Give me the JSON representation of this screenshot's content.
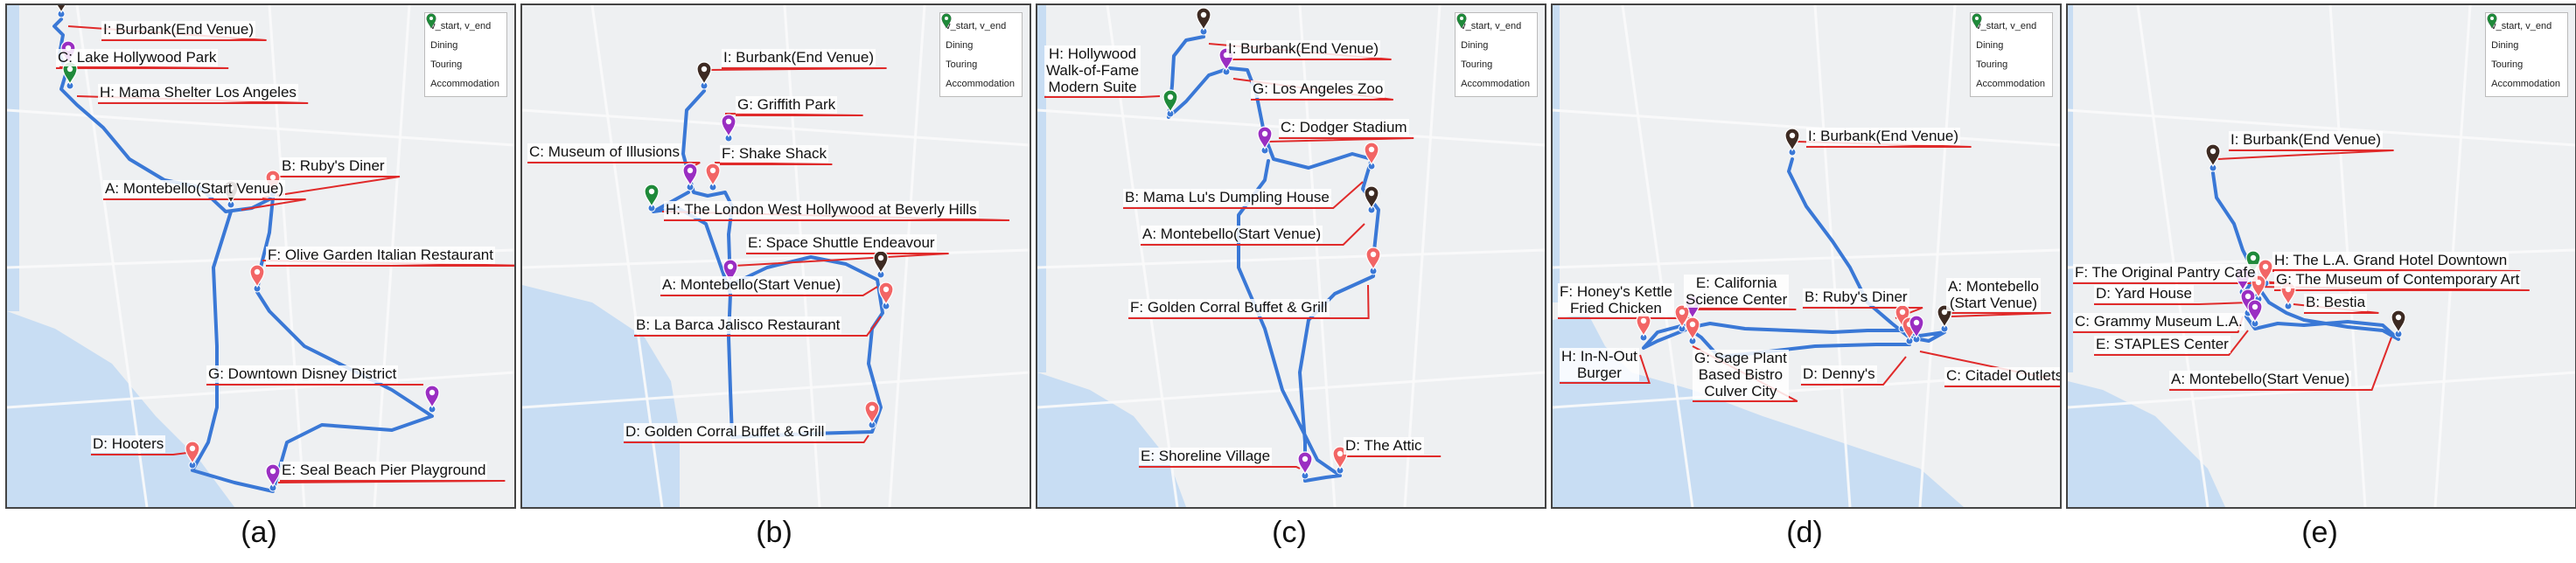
{
  "figure": {
    "colors": {
      "route": "#3a78d6",
      "leader": "#e02a2a",
      "land": "#eef0f2",
      "water": "#c8ddf3",
      "road": "#fbfbfb",
      "start_end": "#3d2a22",
      "dining": "#f26565",
      "touring": "#9a2ec2",
      "accommodation": "#1f8a3a"
    },
    "legend": [
      {
        "key": "start_end",
        "label": "v_start, v_end",
        "color": "#3d2a22",
        "icon": "map-pin-icon"
      },
      {
        "key": "dining",
        "label": "Dining",
        "color": "#f26565",
        "icon": "map-pin-icon"
      },
      {
        "key": "touring",
        "label": "Touring",
        "color": "#9a2ec2",
        "icon": "map-pin-icon"
      },
      {
        "key": "accommodation",
        "label": "Accommodation",
        "color": "#1f8a3a",
        "icon": "map-pin-icon"
      }
    ],
    "panels": [
      {
        "caption": "(a)",
        "stops": [
          {
            "id": "I",
            "label": "I: Burbank(End Venue)",
            "category": "start_end"
          },
          {
            "id": "C",
            "label": "C: Lake Hollywood Park",
            "category": "touring"
          },
          {
            "id": "H",
            "label": "H: Mama Shelter Los Angeles",
            "category": "accommodation"
          },
          {
            "id": "B",
            "label": "B: Ruby's Diner",
            "category": "dining"
          },
          {
            "id": "A",
            "label": "A: Montebello(Start Venue)",
            "category": "start_end"
          },
          {
            "id": "F",
            "label": "F: Olive Garden Italian Restaurant",
            "category": "dining"
          },
          {
            "id": "G",
            "label": "G: Downtown Disney District",
            "category": "touring"
          },
          {
            "id": "D",
            "label": "D: Hooters",
            "category": "dining"
          },
          {
            "id": "E",
            "label": "E: Seal Beach Pier Playground",
            "category": "touring"
          }
        ]
      },
      {
        "caption": "(b)",
        "stops": [
          {
            "id": "I",
            "label": "I: Burbank(End Venue)",
            "category": "start_end"
          },
          {
            "id": "G",
            "label": "G: Griffith Park",
            "category": "touring"
          },
          {
            "id": "C",
            "label": "C: Museum of Illusions",
            "category": "touring"
          },
          {
            "id": "F",
            "label": "F: Shake Shack",
            "category": "dining"
          },
          {
            "id": "H",
            "label": "H: The London West Hollywood at Beverly Hills",
            "category": "accommodation"
          },
          {
            "id": "E",
            "label": "E: Space Shuttle Endeavour",
            "category": "touring"
          },
          {
            "id": "A",
            "label": "A: Montebello(Start Venue)",
            "category": "start_end"
          },
          {
            "id": "B",
            "label": "B: La Barca Jalisco Restaurant",
            "category": "dining"
          },
          {
            "id": "D",
            "label": "D: Golden Corral Buffet & Grill",
            "category": "dining"
          }
        ]
      },
      {
        "caption": "(c)",
        "stops": [
          {
            "id": "H",
            "label": "H: Hollywood\nWalk-of-Fame\nModern Suite",
            "category": "accommodation"
          },
          {
            "id": "I",
            "label": "I: Burbank(End Venue)",
            "category": "start_end"
          },
          {
            "id": "G",
            "label": "G: Los Angeles Zoo",
            "category": "touring"
          },
          {
            "id": "C",
            "label": "C: Dodger Stadium",
            "category": "touring"
          },
          {
            "id": "B",
            "label": "B: Mama Lu's Dumpling House",
            "category": "dining"
          },
          {
            "id": "A",
            "label": "A: Montebello(Start Venue)",
            "category": "start_end"
          },
          {
            "id": "F",
            "label": "F: Golden Corral Buffet & Grill",
            "category": "dining"
          },
          {
            "id": "E",
            "label": "E: Shoreline Village",
            "category": "touring"
          },
          {
            "id": "D",
            "label": "D: The Attic",
            "category": "dining"
          }
        ]
      },
      {
        "caption": "(d)",
        "stops": [
          {
            "id": "I",
            "label": "I: Burbank(End Venue)",
            "category": "start_end"
          },
          {
            "id": "E",
            "label": "E: California\nScience Center",
            "category": "touring"
          },
          {
            "id": "F",
            "label": "F: Honey's Kettle\nFried Chicken",
            "category": "dining"
          },
          {
            "id": "B",
            "label": "B: Ruby's Diner",
            "category": "dining"
          },
          {
            "id": "A",
            "label": "A: Montebello\n(Start Venue)",
            "category": "start_end"
          },
          {
            "id": "G",
            "label": "G: Sage Plant\nBased Bistro\nCulver City",
            "category": "dining"
          },
          {
            "id": "H",
            "label": "H: In-N-Out\nBurger",
            "category": "dining"
          },
          {
            "id": "D",
            "label": "D: Denny's",
            "category": "dining"
          },
          {
            "id": "C",
            "label": "C: Citadel Outlets",
            "category": "touring"
          }
        ]
      },
      {
        "caption": "(e)",
        "stops": [
          {
            "id": "I",
            "label": "I: Burbank(End Venue)",
            "category": "start_end"
          },
          {
            "id": "H",
            "label": "H: The L.A. Grand Hotel Downtown",
            "category": "accommodation"
          },
          {
            "id": "F",
            "label": "F: The Original Pantry Cafe",
            "category": "dining"
          },
          {
            "id": "G",
            "label": "G: The Museum of Contemporary Art",
            "category": "touring"
          },
          {
            "id": "D",
            "label": "D: Yard House",
            "category": "dining"
          },
          {
            "id": "B",
            "label": "B: Bestia",
            "category": "dining"
          },
          {
            "id": "C",
            "label": "C: Grammy Museum L.A.",
            "category": "touring"
          },
          {
            "id": "E",
            "label": "E: STAPLES Center",
            "category": "touring"
          },
          {
            "id": "A",
            "label": "A: Montebello(Start Venue)",
            "category": "start_end"
          }
        ]
      }
    ]
  }
}
